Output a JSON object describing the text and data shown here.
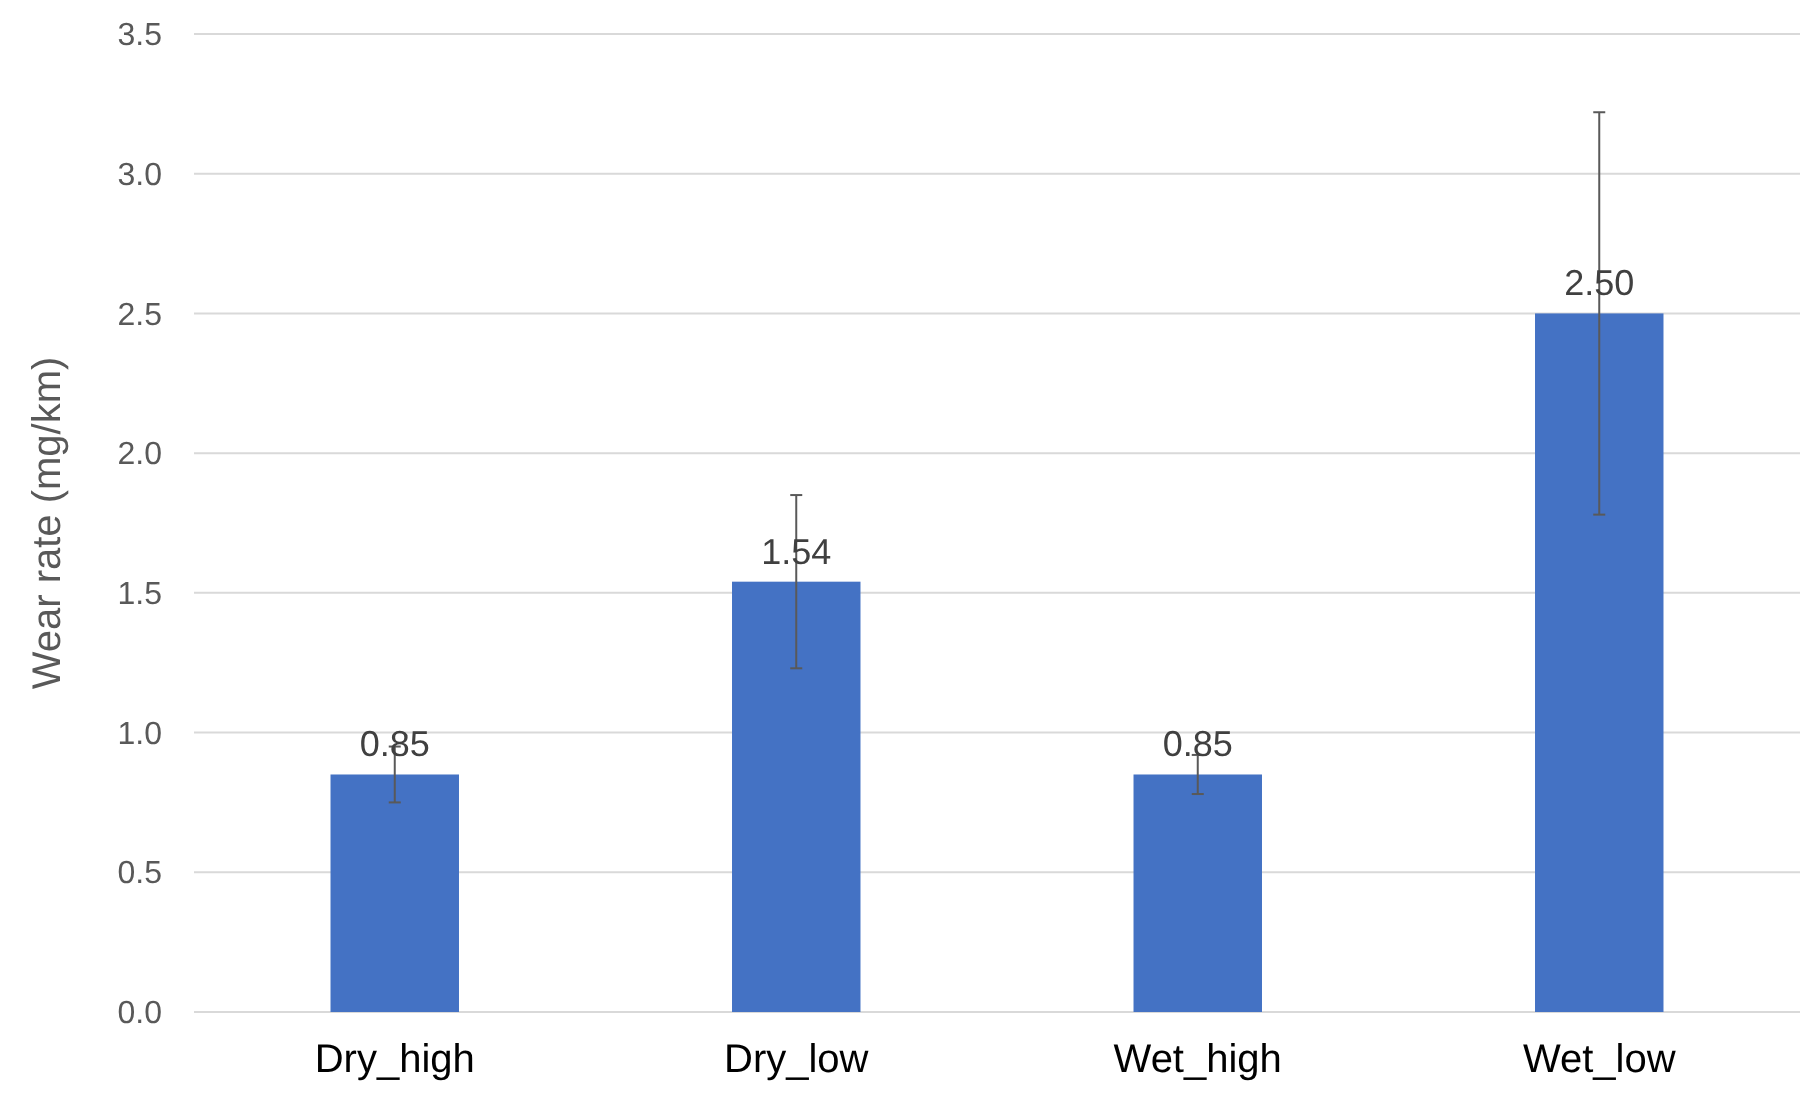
{
  "chart_data": {
    "type": "bar",
    "ylabel": "Wear rate (mg/km)",
    "categories": [
      "Dry_high",
      "Dry_low",
      "Wet_high",
      "Wet_low"
    ],
    "values": [
      0.85,
      1.54,
      0.85,
      2.5
    ],
    "value_labels": [
      "0.85",
      "1.54",
      "0.85",
      "2.50"
    ],
    "errors": [
      0.1,
      0.31,
      0.07,
      0.72
    ],
    "color": "#4472c4",
    "ylim": [
      0,
      3.5
    ],
    "yticks": [
      {
        "value": 0,
        "label": "0.0"
      },
      {
        "value": 0.5,
        "label": "0.5"
      },
      {
        "value": 1,
        "label": "1.0"
      },
      {
        "value": 1.5,
        "label": "1.5"
      },
      {
        "value": 2,
        "label": "2.0"
      },
      {
        "value": 2.5,
        "label": "2.5"
      },
      {
        "value": 3,
        "label": "3.0"
      },
      {
        "value": 3.5,
        "label": "3.5"
      }
    ],
    "grid": "y"
  }
}
